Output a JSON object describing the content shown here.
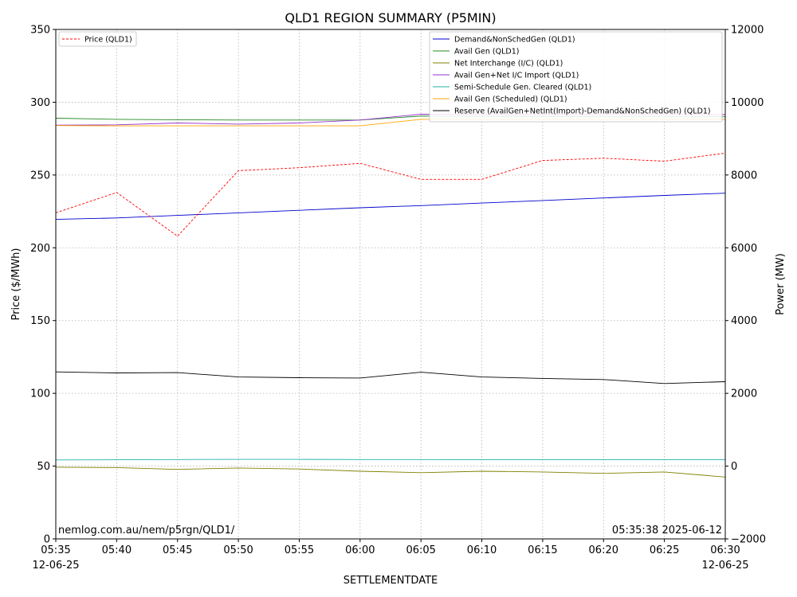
{
  "chart_data": {
    "type": "line",
    "title": "QLD1 REGION SUMMARY (P5MIN)",
    "xlabel": "SETTLEMENTDATE",
    "ylabel_left": "Price ($/MWh)",
    "ylabel_right": "Power (MW)",
    "x": [
      "05:35",
      "05:40",
      "05:45",
      "05:50",
      "05:55",
      "06:00",
      "06:05",
      "06:10",
      "06:15",
      "06:20",
      "06:25",
      "06:30"
    ],
    "x_date_left": "12-06-25",
    "x_date_right": "12-06-25",
    "ylim_left": [
      0,
      350
    ],
    "yticks_left": [
      0,
      50,
      100,
      150,
      200,
      250,
      300,
      350
    ],
    "ylim_right": [
      -2000,
      12000
    ],
    "yticks_right": [
      -2000,
      0,
      2000,
      4000,
      6000,
      8000,
      10000,
      12000
    ],
    "grid": true,
    "legend_left": {
      "placement": "top-left",
      "entries": [
        {
          "name": "Price (QLD1)",
          "color": "#ff0000",
          "dash": "dashed"
        }
      ]
    },
    "legend_right": {
      "placement": "top-right",
      "entries": [
        {
          "name": "Demand&NonSchedGen (QLD1)",
          "color": "#0000cc"
        },
        {
          "name": "Avail Gen (QLD1)",
          "color": "#228b22"
        },
        {
          "name": "Net Interchange (I/C) (QLD1)",
          "color": "#808000"
        },
        {
          "name": "Avail Gen+Net I/C Import (QLD1)",
          "color": "#9932cc"
        },
        {
          "name": "Semi-Schedule Gen. Cleared (QLD1)",
          "color": "#20b2aa"
        },
        {
          "name": "Avail Gen (Scheduled) (QLD1)",
          "color": "#ffa500"
        },
        {
          "name": "Reserve (AvailGen+NetInt(Import)-Demand&NonSchedGen) (QLD1)",
          "color": "#000000"
        }
      ]
    },
    "series": [
      {
        "name": "Price (QLD1)",
        "axis": "left",
        "color": "#ff0000",
        "dash": "dashed",
        "values": [
          224,
          238,
          208,
          253,
          255,
          258,
          247,
          247,
          260,
          261.5,
          259.5,
          265
        ]
      },
      {
        "name": "Demand&NonSchedGen (QLD1)",
        "axis": "right",
        "color": "#0000cc",
        "values": [
          6780,
          6820,
          6890,
          6960,
          7030,
          7100,
          7160,
          7230,
          7300,
          7370,
          7440,
          7500
        ]
      },
      {
        "name": "Avail Gen (QLD1)",
        "axis": "right",
        "color": "#228b22",
        "values": [
          9560,
          9530,
          9520,
          9510,
          9510,
          9510,
          9620,
          9610,
          9610,
          9600,
          9600,
          9600
        ]
      },
      {
        "name": "Net Interchange (I/C) (QLD1)",
        "axis": "right",
        "color": "#808000",
        "values": [
          -30,
          -40,
          -90,
          -50,
          -80,
          -140,
          -180,
          -140,
          -160,
          -200,
          -160,
          -300
        ]
      },
      {
        "name": "Avail Gen+Net I/C Import (QLD1)",
        "axis": "right",
        "color": "#9932cc",
        "values": [
          9370,
          9380,
          9430,
          9400,
          9430,
          9510,
          9670,
          9660,
          9660,
          9660,
          9660,
          9660
        ]
      },
      {
        "name": "Semi-Schedule Gen. Cleared (QLD1)",
        "axis": "right",
        "color": "#20b2aa",
        "values": [
          170,
          175,
          180,
          185,
          185,
          180,
          180,
          175,
          175,
          175,
          175,
          175
        ]
      },
      {
        "name": "Avail Gen (Scheduled) (QLD1)",
        "axis": "right",
        "color": "#ffa500",
        "values": [
          9360,
          9350,
          9350,
          9350,
          9350,
          9350,
          9530,
          9530,
          9530,
          9530,
          9530,
          9530
        ]
      },
      {
        "name": "Reserve (AvailGen+NetInt(Import)-Demand&NonSchedGen) (QLD1)",
        "axis": "right",
        "color": "#000000",
        "values": [
          2590,
          2560,
          2570,
          2450,
          2430,
          2420,
          2580,
          2450,
          2410,
          2380,
          2270,
          2320
        ]
      }
    ],
    "annotations": {
      "source": "nemlog.com.au/nem/p5rgn/QLD1/",
      "timestamp": "05:35:38 2025-06-12"
    }
  }
}
